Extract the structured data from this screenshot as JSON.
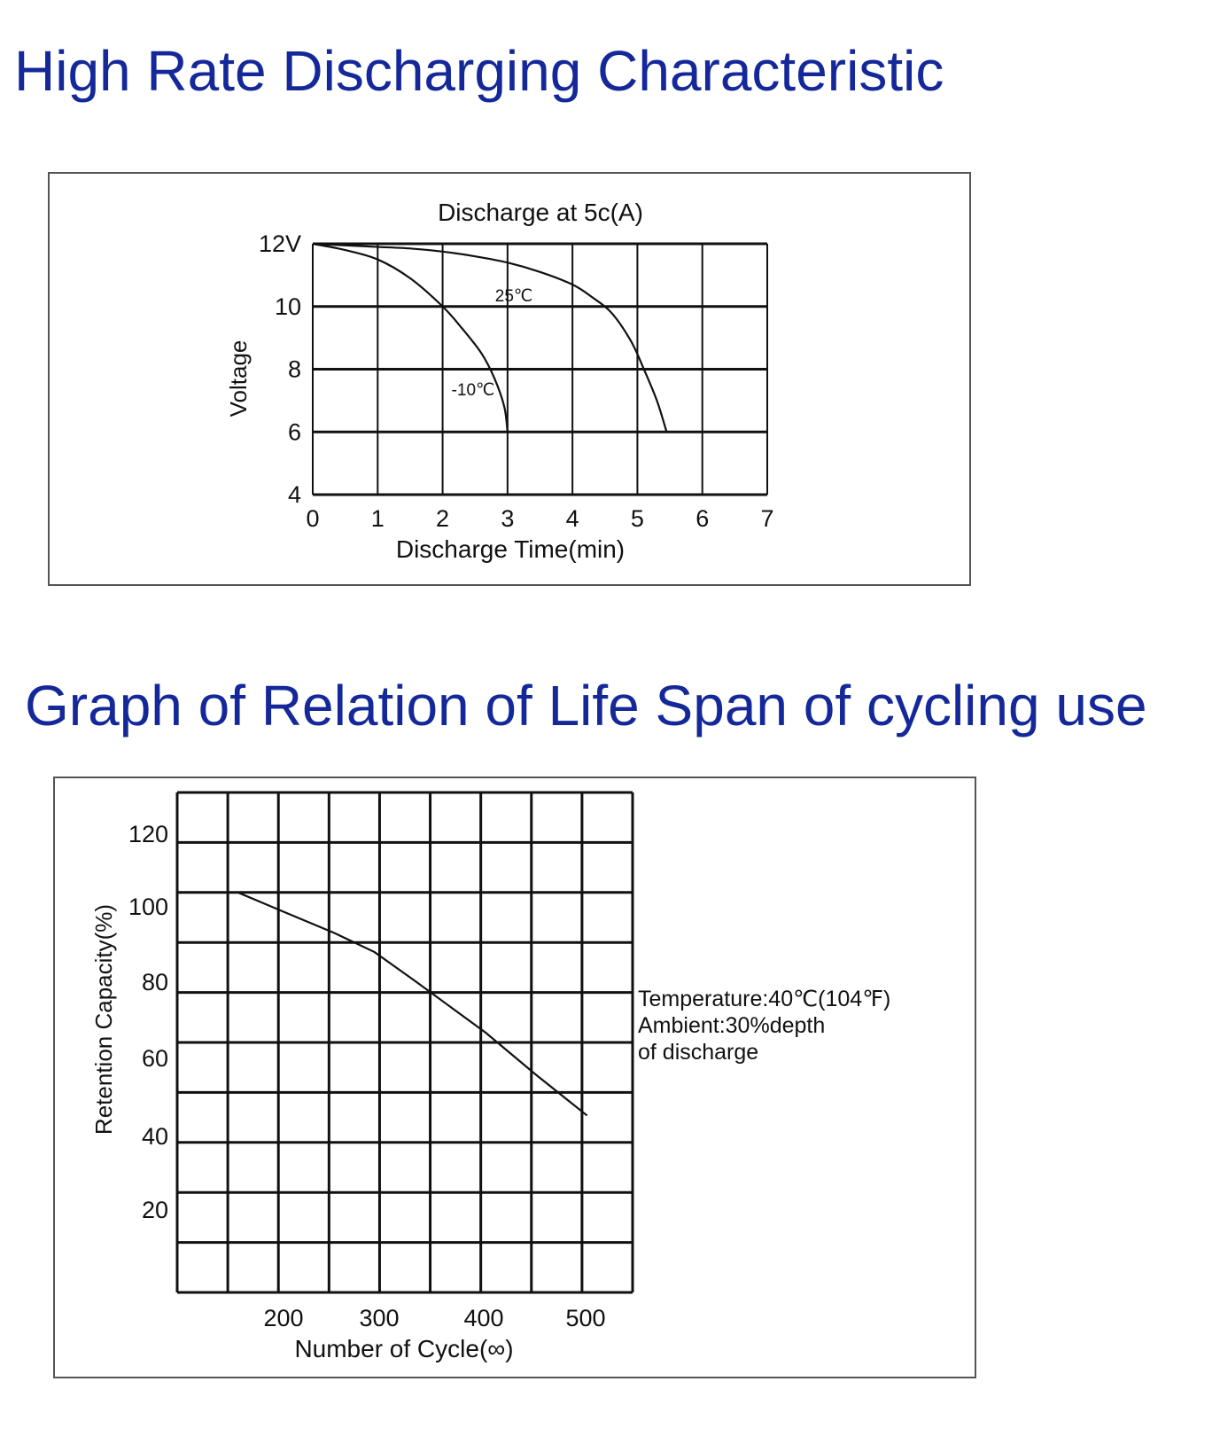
{
  "headings": {
    "discharge": "High Rate Discharging Characteristic",
    "cycle": "Graph of Relation of Life Span of cycling use"
  },
  "colors": {
    "heading": "#14289a",
    "grid": "#111111",
    "curve": "#111111",
    "frame": "#555555"
  },
  "chart_data": [
    {
      "type": "line",
      "title": "Discharge at 5c(A)",
      "xlabel": "Discharge Time(min)",
      "ylabel": "Voltage",
      "xlim": [
        0,
        7
      ],
      "ylim": [
        4,
        12
      ],
      "x_ticks": [
        "0",
        "1",
        "2",
        "3",
        "4",
        "5",
        "6",
        "7"
      ],
      "y_ticks": [
        {
          "value": 12,
          "label": "12V"
        },
        {
          "value": 10,
          "label": "10"
        },
        {
          "value": 8,
          "label": "8"
        },
        {
          "value": 6,
          "label": "6"
        },
        {
          "value": 4,
          "label": "4"
        }
      ],
      "grid": true,
      "series": [
        {
          "name": "25℃",
          "x": [
            0,
            0.5,
            1,
            1.5,
            2,
            2.5,
            3,
            3.5,
            4,
            4.3,
            4.6,
            4.9,
            5.1,
            5.3,
            5.45
          ],
          "y": [
            12,
            11.95,
            11.9,
            11.85,
            11.75,
            11.6,
            11.4,
            11.1,
            10.7,
            10.3,
            9.8,
            8.9,
            8.0,
            7.0,
            6.0
          ]
        },
        {
          "name": "-10℃",
          "x": [
            0,
            0.5,
            1,
            1.5,
            2,
            2.3,
            2.6,
            2.8,
            2.95,
            3.0
          ],
          "y": [
            12,
            11.8,
            11.5,
            10.9,
            10.0,
            9.3,
            8.5,
            7.7,
            6.8,
            6.0
          ]
        }
      ]
    },
    {
      "type": "line",
      "title": "",
      "xlabel": "Number of Cycle(∞)",
      "ylabel": "Retention Capacity(%)",
      "xlim": [
        95,
        545
      ],
      "ylim": [
        0,
        130
      ],
      "x_ticks": [
        "200",
        "300",
        "400",
        "500"
      ],
      "y_ticks": [
        "120",
        "100",
        "80",
        "60",
        "40",
        "20"
      ],
      "grid": true,
      "annotation": [
        "Temperature:40℃(104℉)",
        "Ambient:30%depth",
        "of discharge"
      ],
      "series": [
        {
          "x": [
            155,
            200,
            250,
            290,
            330,
            400,
            450,
            500
          ],
          "y": [
            104,
            99,
            93.5,
            88.5,
            81,
            67.5,
            56.5,
            46
          ]
        }
      ]
    }
  ]
}
